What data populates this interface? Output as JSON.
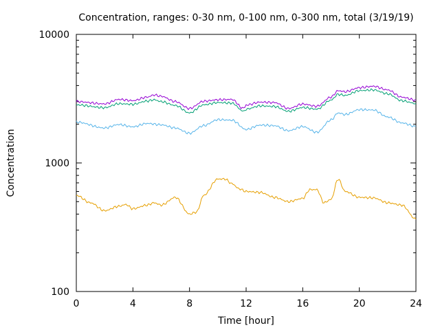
{
  "chart_data": {
    "type": "line",
    "title": "Concentration, ranges: 0-30 nm, 0-100 nm, 0-300 nm, total (3/19/19)",
    "xlabel": "Time [hour]",
    "ylabel": "Concentration",
    "xlim": [
      0,
      24
    ],
    "ylim": [
      100,
      10000
    ],
    "yscale": "log",
    "grid": false,
    "legend": "none",
    "x_ticks": [
      0,
      4,
      8,
      12,
      16,
      20,
      24
    ],
    "x_tick_labels": [
      "0",
      "4",
      "8",
      "12",
      "16",
      "20",
      "24"
    ],
    "y_ticks": [
      100,
      1000,
      10000
    ],
    "y_tick_labels": [
      "100",
      "1000",
      "10000"
    ],
    "series": [
      {
        "color": "#e69f00",
        "x": [
          0,
          1,
          2,
          3,
          3.5,
          4,
          5,
          5.5,
          6,
          7,
          8,
          8.5,
          9,
          10,
          10.5,
          11,
          11.5,
          12,
          13,
          14,
          15,
          16,
          16.5,
          17,
          17.5,
          18,
          18.5,
          19,
          20,
          21,
          22,
          23,
          24
        ],
        "values": [
          560,
          490,
          425,
          460,
          475,
          440,
          470,
          490,
          470,
          540,
          400,
          415,
          560,
          750,
          750,
          690,
          630,
          600,
          590,
          540,
          500,
          530,
          620,
          620,
          490,
          520,
          750,
          600,
          540,
          535,
          490,
          470,
          365
        ]
      },
      {
        "color": "#56b4e9",
        "x": [
          0,
          2,
          3,
          4,
          5,
          6,
          7,
          8,
          9,
          10,
          11,
          12,
          13,
          14,
          15,
          16,
          17,
          18,
          18.5,
          19,
          20,
          21,
          22,
          23,
          24
        ],
        "values": [
          2080,
          1870,
          1990,
          1910,
          2030,
          1980,
          1870,
          1700,
          1950,
          2170,
          2150,
          1820,
          1970,
          1950,
          1780,
          1920,
          1730,
          2160,
          2450,
          2380,
          2600,
          2580,
          2280,
          2050,
          1920
        ]
      },
      {
        "color": "#009e73",
        "x": [
          0,
          2,
          3,
          4,
          5,
          5.5,
          6,
          7,
          8,
          9,
          10,
          11,
          11.8,
          12,
          13,
          14,
          15,
          16,
          17,
          18,
          18.5,
          19,
          20,
          21,
          22,
          23,
          24
        ],
        "values": [
          2830,
          2690,
          2890,
          2860,
          3030,
          3100,
          3000,
          2800,
          2450,
          2830,
          2950,
          2920,
          2530,
          2620,
          2780,
          2750,
          2520,
          2700,
          2620,
          3080,
          3420,
          3350,
          3650,
          3700,
          3450,
          3050,
          2900
        ]
      },
      {
        "color": "#9400d3",
        "x": [
          0,
          2,
          3,
          4,
          5,
          5.5,
          6,
          7,
          8,
          9,
          10,
          11,
          11.8,
          12,
          13,
          14,
          15,
          16,
          17,
          18,
          18.5,
          19,
          20,
          21,
          22,
          23,
          24
        ],
        "values": [
          3000,
          2880,
          3120,
          3050,
          3250,
          3380,
          3300,
          3000,
          2650,
          3020,
          3100,
          3120,
          2650,
          2820,
          2970,
          2950,
          2650,
          2870,
          2760,
          3250,
          3650,
          3580,
          3850,
          3950,
          3700,
          3250,
          3080
        ]
      }
    ]
  }
}
